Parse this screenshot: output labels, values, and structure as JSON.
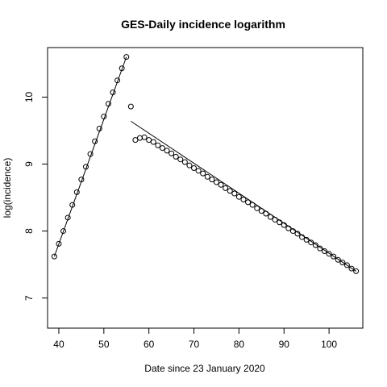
{
  "chart_data": {
    "type": "scatter",
    "title": "GES-Daily incidence logarithm",
    "xlabel": "Date since 23 January 2020",
    "ylabel": "log(incidence)",
    "xlim": [
      37.5,
      107.5
    ],
    "ylim": [
      6.55,
      10.74
    ],
    "x_ticks": [
      40,
      50,
      60,
      70,
      80,
      90,
      100
    ],
    "y_ticks": [
      7,
      8,
      9,
      10
    ],
    "grid": false,
    "legend": "none",
    "colors": {
      "points": "#000000",
      "lines": "#000000",
      "background": "#ffffff"
    },
    "series": [
      {
        "kind": "points",
        "x": [
          39,
          40,
          41,
          42,
          43,
          44,
          45,
          46,
          47,
          48,
          49,
          50,
          51,
          52,
          53,
          54,
          55,
          56,
          57,
          58,
          59,
          60,
          61,
          62,
          63,
          64,
          65,
          66,
          67,
          68,
          69,
          70,
          71,
          72,
          73,
          74,
          75,
          76,
          77,
          78,
          79,
          80,
          81,
          82,
          83,
          84,
          85,
          86,
          87,
          88,
          89,
          90,
          91,
          92,
          93,
          94,
          95,
          96,
          97,
          98,
          99,
          100,
          101,
          102,
          103,
          104,
          105,
          106
        ],
        "y": [
          7.62,
          7.81,
          8.0,
          8.2,
          8.39,
          8.58,
          8.77,
          8.96,
          9.15,
          9.34,
          9.53,
          9.71,
          9.9,
          10.07,
          10.25,
          10.43,
          10.6,
          9.86,
          9.36,
          9.39,
          9.4,
          9.36,
          9.33,
          9.28,
          9.24,
          9.2,
          9.16,
          9.11,
          9.07,
          9.03,
          8.98,
          8.94,
          8.9,
          8.86,
          8.81,
          8.77,
          8.73,
          8.69,
          8.64,
          8.6,
          8.56,
          8.51,
          8.47,
          8.43,
          8.39,
          8.34,
          8.3,
          8.26,
          8.21,
          8.17,
          8.13,
          8.09,
          8.04,
          8.0,
          7.96,
          7.91,
          7.87,
          7.83,
          7.79,
          7.74,
          7.7,
          7.66,
          7.62,
          7.57,
          7.53,
          7.49,
          7.44,
          7.4
        ]
      },
      {
        "kind": "line",
        "x": [
          39,
          55
        ],
        "y": [
          7.62,
          10.6
        ]
      },
      {
        "kind": "line",
        "x": [
          56,
          106
        ],
        "y": [
          9.64,
          7.4
        ]
      }
    ]
  }
}
